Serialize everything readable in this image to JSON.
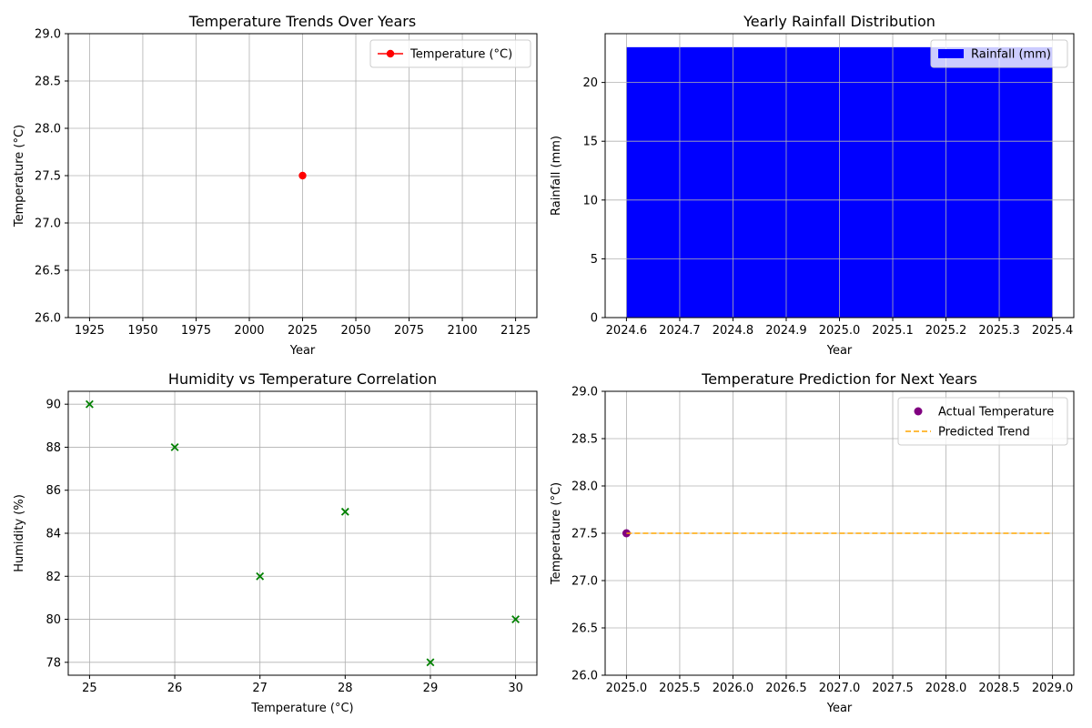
{
  "chart_data": [
    {
      "type": "line",
      "title": "Temperature Trends Over Years",
      "xlabel": "Year",
      "ylabel": "Temperature (°C)",
      "xlim": [
        1915,
        2135
      ],
      "ylim": [
        26.0,
        29.0
      ],
      "xticks": [
        1925,
        1950,
        1975,
        2000,
        2025,
        2050,
        2075,
        2100,
        2125
      ],
      "yticks": [
        26.0,
        26.5,
        27.0,
        27.5,
        28.0,
        28.5,
        29.0
      ],
      "xtick_labels": [
        "1925",
        "1950",
        "1975",
        "2000",
        "2025",
        "2050",
        "2075",
        "2100",
        "2125"
      ],
      "ytick_labels": [
        "26.0",
        "26.5",
        "27.0",
        "27.5",
        "28.0",
        "28.5",
        "29.0"
      ],
      "grid": true,
      "legend": "upper right",
      "series": [
        {
          "name": "Temperature (°C)",
          "color": "#ff0000",
          "marker": "circle",
          "x": [
            2025
          ],
          "y": [
            27.5
          ]
        }
      ]
    },
    {
      "type": "bar",
      "title": "Yearly Rainfall Distribution",
      "xlabel": "Year",
      "ylabel": "Rainfall (mm)",
      "xlim": [
        2024.56,
        2025.44
      ],
      "ylim": [
        0,
        24.15
      ],
      "xticks": [
        2024.6,
        2024.7,
        2024.8,
        2024.9,
        2025.0,
        2025.1,
        2025.2,
        2025.3,
        2025.4
      ],
      "yticks": [
        0,
        5,
        10,
        15,
        20
      ],
      "xtick_labels": [
        "2024.6",
        "2024.7",
        "2024.8",
        "2024.9",
        "2025.0",
        "2025.1",
        "2025.2",
        "2025.3",
        "2025.4"
      ],
      "ytick_labels": [
        "0",
        "5",
        "10",
        "15",
        "20"
      ],
      "grid": true,
      "legend": "upper right",
      "series": [
        {
          "name": "Rainfall (mm)",
          "color": "#0000ff",
          "x": [
            2025
          ],
          "values": [
            23
          ],
          "bar_width": 0.8
        }
      ]
    },
    {
      "type": "scatter",
      "title": "Humidity vs Temperature Correlation",
      "xlabel": "Temperature (°C)",
      "ylabel": "Humidity (%)",
      "xlim": [
        24.75,
        30.25
      ],
      "ylim": [
        77.4,
        90.6
      ],
      "xticks": [
        25,
        26,
        27,
        28,
        29,
        30
      ],
      "yticks": [
        78,
        80,
        82,
        84,
        86,
        88,
        90
      ],
      "xtick_labels": [
        "25",
        "26",
        "27",
        "28",
        "29",
        "30"
      ],
      "ytick_labels": [
        "78",
        "80",
        "82",
        "84",
        "86",
        "88",
        "90"
      ],
      "grid": true,
      "series": [
        {
          "color": "#008000",
          "marker": "x",
          "x": [
            25,
            26,
            27,
            28,
            29,
            30
          ],
          "y": [
            90,
            88,
            82,
            85,
            78,
            80
          ]
        }
      ]
    },
    {
      "type": "scatter",
      "title": "Temperature Prediction for Next Years",
      "xlabel": "Year",
      "ylabel": "Temperature (°C)",
      "xlim": [
        2024.8,
        2029.2
      ],
      "ylim": [
        26.0,
        29.0
      ],
      "xticks": [
        2025.0,
        2025.5,
        2026.0,
        2026.5,
        2027.0,
        2027.5,
        2028.0,
        2028.5,
        2029.0
      ],
      "yticks": [
        26.0,
        26.5,
        27.0,
        27.5,
        28.0,
        28.5,
        29.0
      ],
      "xtick_labels": [
        "2025.0",
        "2025.5",
        "2026.0",
        "2026.5",
        "2027.0",
        "2027.5",
        "2028.0",
        "2028.5",
        "2029.0"
      ],
      "ytick_labels": [
        "26.0",
        "26.5",
        "27.0",
        "27.5",
        "28.0",
        "28.5",
        "29.0"
      ],
      "grid": true,
      "legend": "upper right",
      "series": [
        {
          "name": "Actual Temperature",
          "kind": "scatter",
          "color": "#800080",
          "x": [
            2025
          ],
          "y": [
            27.5
          ]
        },
        {
          "name": "Predicted Trend",
          "kind": "dashed-line",
          "color": "#ffa500",
          "x": [
            2025,
            2029
          ],
          "y": [
            27.5,
            27.5
          ]
        }
      ]
    }
  ]
}
